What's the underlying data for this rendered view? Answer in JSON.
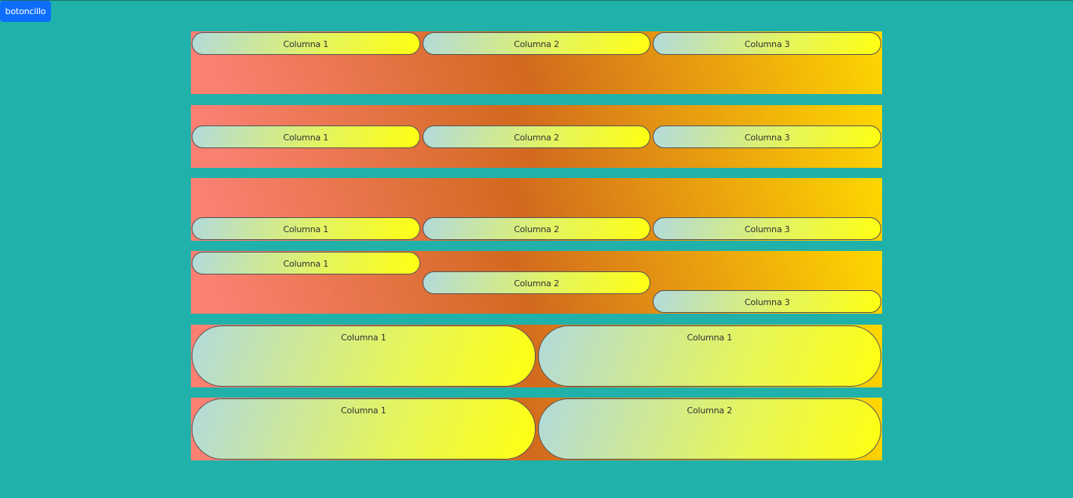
{
  "toolbar": {
    "button_label": "botoncillo"
  },
  "bands": [
    {
      "align": "top",
      "columns": [
        "Columna 1",
        "Columna 2",
        "Columna 3"
      ]
    },
    {
      "align": "center",
      "columns": [
        "Columna 1",
        "Columna 2",
        "Columna 3"
      ]
    },
    {
      "align": "bottom",
      "columns": [
        "Columna 1",
        "Columna 2",
        "Columna 3"
      ]
    },
    {
      "align": "staggered",
      "columns": [
        "Columna 1",
        "Columna 2",
        "Columna 3"
      ]
    },
    {
      "align": "stretch",
      "columns": [
        "Columna 1",
        "Columna 1"
      ]
    },
    {
      "align": "stretch",
      "columns": [
        "Columna 1",
        "Columna 2"
      ]
    }
  ],
  "colors": {
    "page_background": "#20b2aa",
    "button": "#0d6efd",
    "band_gradient": [
      "#fa8072",
      "#d2691e",
      "#ffd700"
    ],
    "pill_gradient": [
      "#b2dadc",
      "#ffff10"
    ]
  }
}
